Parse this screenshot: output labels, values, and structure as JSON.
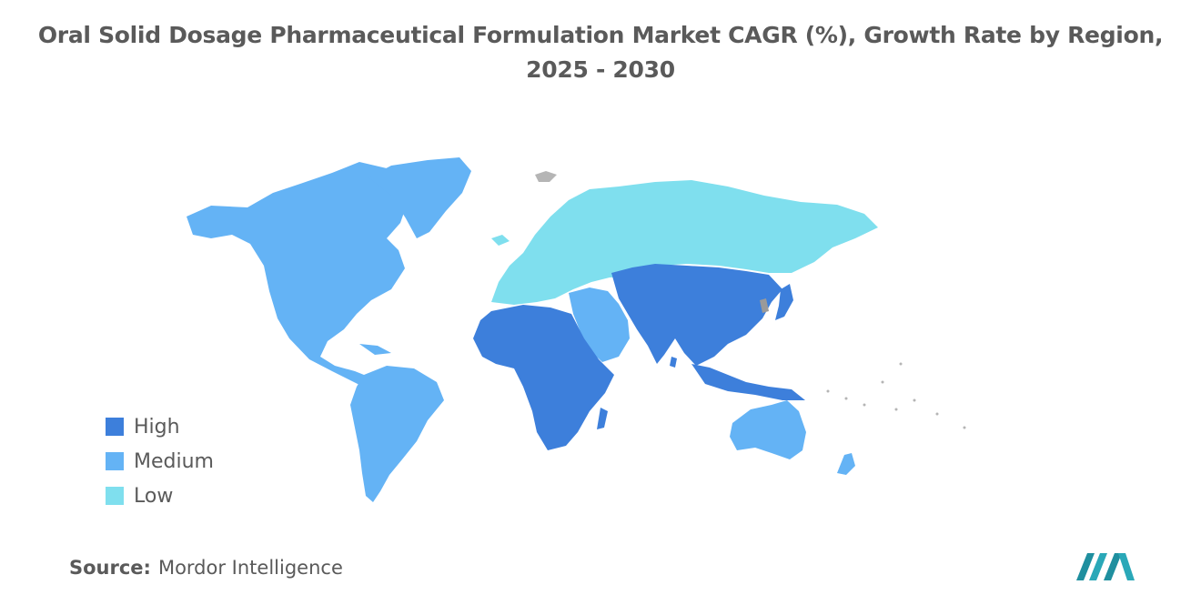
{
  "title_line1": "Oral Solid Dosage Pharmaceutical Formulation Market CAGR (%), Growth Rate by Region,",
  "title_line2": "2025 - 2030",
  "legend": [
    {
      "label": "High",
      "color": "#3d7fdb"
    },
    {
      "label": "Medium",
      "color": "#64b3f5"
    },
    {
      "label": "Low",
      "color": "#7fdfee"
    }
  ],
  "regions": {
    "north_america": "Medium",
    "south_america": "Medium",
    "europe_russia": "Low",
    "middle_east": "Medium",
    "africa": "High",
    "asia": "High",
    "japan": "High",
    "southeast_asia": "High",
    "australia_nz": "Medium"
  },
  "source_label": "Source:",
  "source_value": "Mordor Intelligence"
}
